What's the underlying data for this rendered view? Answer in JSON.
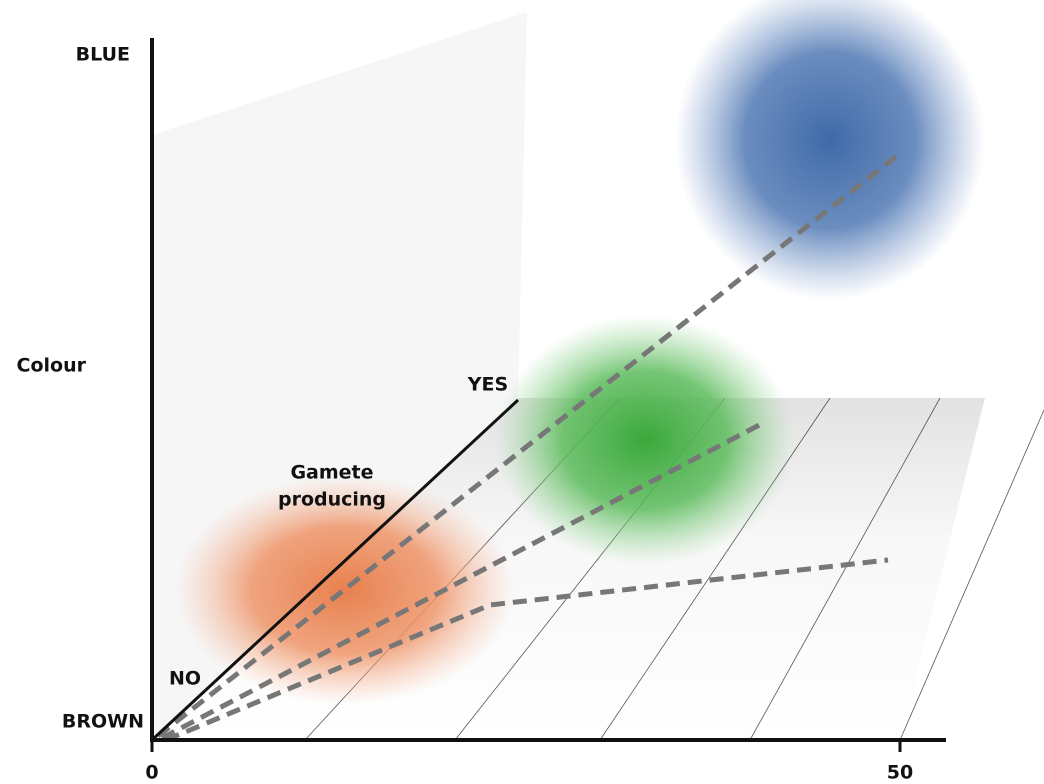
{
  "axes": {
    "colour": {
      "label": "Colour",
      "top": "BLUE",
      "bottom": "BROWN"
    },
    "gamete": {
      "label_lines": [
        "Gamete",
        "producing"
      ],
      "top": "YES",
      "bottom": "NO"
    },
    "horizontal": {
      "ticks": [
        0,
        50
      ]
    }
  }
}
